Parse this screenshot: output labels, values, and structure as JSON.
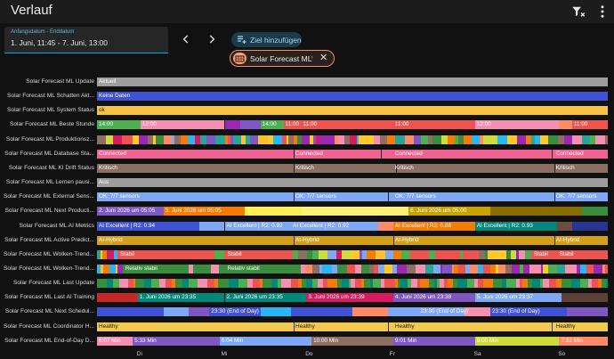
{
  "header": {
    "title": "Verlauf",
    "filter_icon": "filter-remove-icon",
    "menu_icon": "dots-vertical-icon"
  },
  "date_picker": {
    "caption": "Anfangsdatum - Enddatum",
    "value": "1. Juni, 11:45 - 7. Juni, 13:00"
  },
  "nav": {
    "prev_icon": "chevron-left-icon",
    "next_icon": "chevron-right-icon"
  },
  "add_target": {
    "label": "Ziel hinzufügen",
    "icon": "playlist-plus-icon"
  },
  "chip": {
    "label": "Solar Forecast ML",
    "icon": "solar-icon",
    "arrows": "‹ ›"
  },
  "colors": {
    "accent": "#03a9f4",
    "chip_border": "#e8946c",
    "background": "#111111"
  },
  "axis_labels": [
    "Di",
    "Mi",
    "Do",
    "Fr",
    "Sa",
    "So"
  ],
  "rows": [
    {
      "label": "Solar Forecast ML Update",
      "texts": [
        "Aktuell"
      ]
    },
    {
      "label": "Solar Forecast ML Schatten Akt...",
      "texts": [
        "Keine Daten"
      ]
    },
    {
      "label": "Solar Forecast ML System Status",
      "texts": [
        "ok"
      ]
    },
    {
      "label": "Solar Forecast ML Beste Stunde",
      "texts": [
        "14:00",
        "12:00",
        "14:00",
        "11:00",
        "11:00",
        "11:00",
        "12:00",
        "11:00"
      ]
    },
    {
      "label": "Solar Forecast ML Produktionsz...",
      "texts": []
    },
    {
      "label": "Solar Forecast ML Database Sta...",
      "texts": [
        "Connected",
        "Connected",
        "Connected",
        "Connected"
      ]
    },
    {
      "label": "Solar Forecast ML KI Drift Status",
      "texts": [
        "Kritisch",
        "Kritisch",
        "Kritisch",
        "Kritisch"
      ]
    },
    {
      "label": "Solar Forecast ML Lernen pausi...",
      "texts": [
        "Aus"
      ]
    },
    {
      "label": "Solar Forecast ML External Sens...",
      "texts": [
        "OK: 7/7 sensors",
        "OK: 7/7 sensors",
        "OK: 7/7 sensors",
        "OK: 7/7 sensors"
      ]
    },
    {
      "label": "Solar Forecast ML Next Producti...",
      "texts": [
        "2. Juni 2026 um 05:05",
        "3. Juni 2026 um 05:05",
        "6. Juni 2026 um 05:00"
      ]
    },
    {
      "label": "Solar Forecast ML AI Metrics",
      "texts": [
        "AI Excellent | R2: 0.94",
        "AI Excellent | R2: 0.92",
        "AI Excellent | R2: 0.92",
        "AI Excellent | R2: 0.88",
        "AI Excellent | R2: 0.93"
      ]
    },
    {
      "label": "Solar Forecast ML Active Predict...",
      "texts": [
        "AI-Hybrid",
        "AI-Hybrid",
        "AI-Hybrid",
        "AI-Hybrid"
      ]
    },
    {
      "label": "Solar Forecast ML Wolken-Trend...",
      "texts": [
        "Stabil",
        "Stabil",
        "Stabil",
        "Stabil"
      ]
    },
    {
      "label": "Solar Forecast ML Wolken-Trend...",
      "texts": [
        "Relativ stabil",
        "Relativ stabil"
      ]
    },
    {
      "label": "Solar Forecast ML Last Update",
      "texts": []
    },
    {
      "label": "Solar Forecast ML Last AI Training",
      "texts": [
        "1. Juni 2026 um 23:35",
        "2. Juni 2026 um 23:35",
        "3. Juni 2026 um 23:39",
        "4. Juni 2026 um 23:38",
        "5. Juni 2026 um 23:37"
      ]
    },
    {
      "label": "Solar Forecast ML Next Schedul...",
      "texts": [
        "23:30 (End of Day)",
        "23:30 (End of Day)",
        "23:30 (End of Day)"
      ]
    },
    {
      "label": "Solar Forecast ML Coordinator H...",
      "texts": [
        "Healthy",
        "Healthy",
        "Healthy",
        "Healthy"
      ]
    },
    {
      "label": "Solar Forecast ML End-of-Day D...",
      "texts": [
        "6:07 Min",
        "5:33 Min",
        "6:04 Min",
        "10:00 Min",
        "9:01 Min",
        "8:00 Min",
        "7:32 Min"
      ]
    }
  ]
}
